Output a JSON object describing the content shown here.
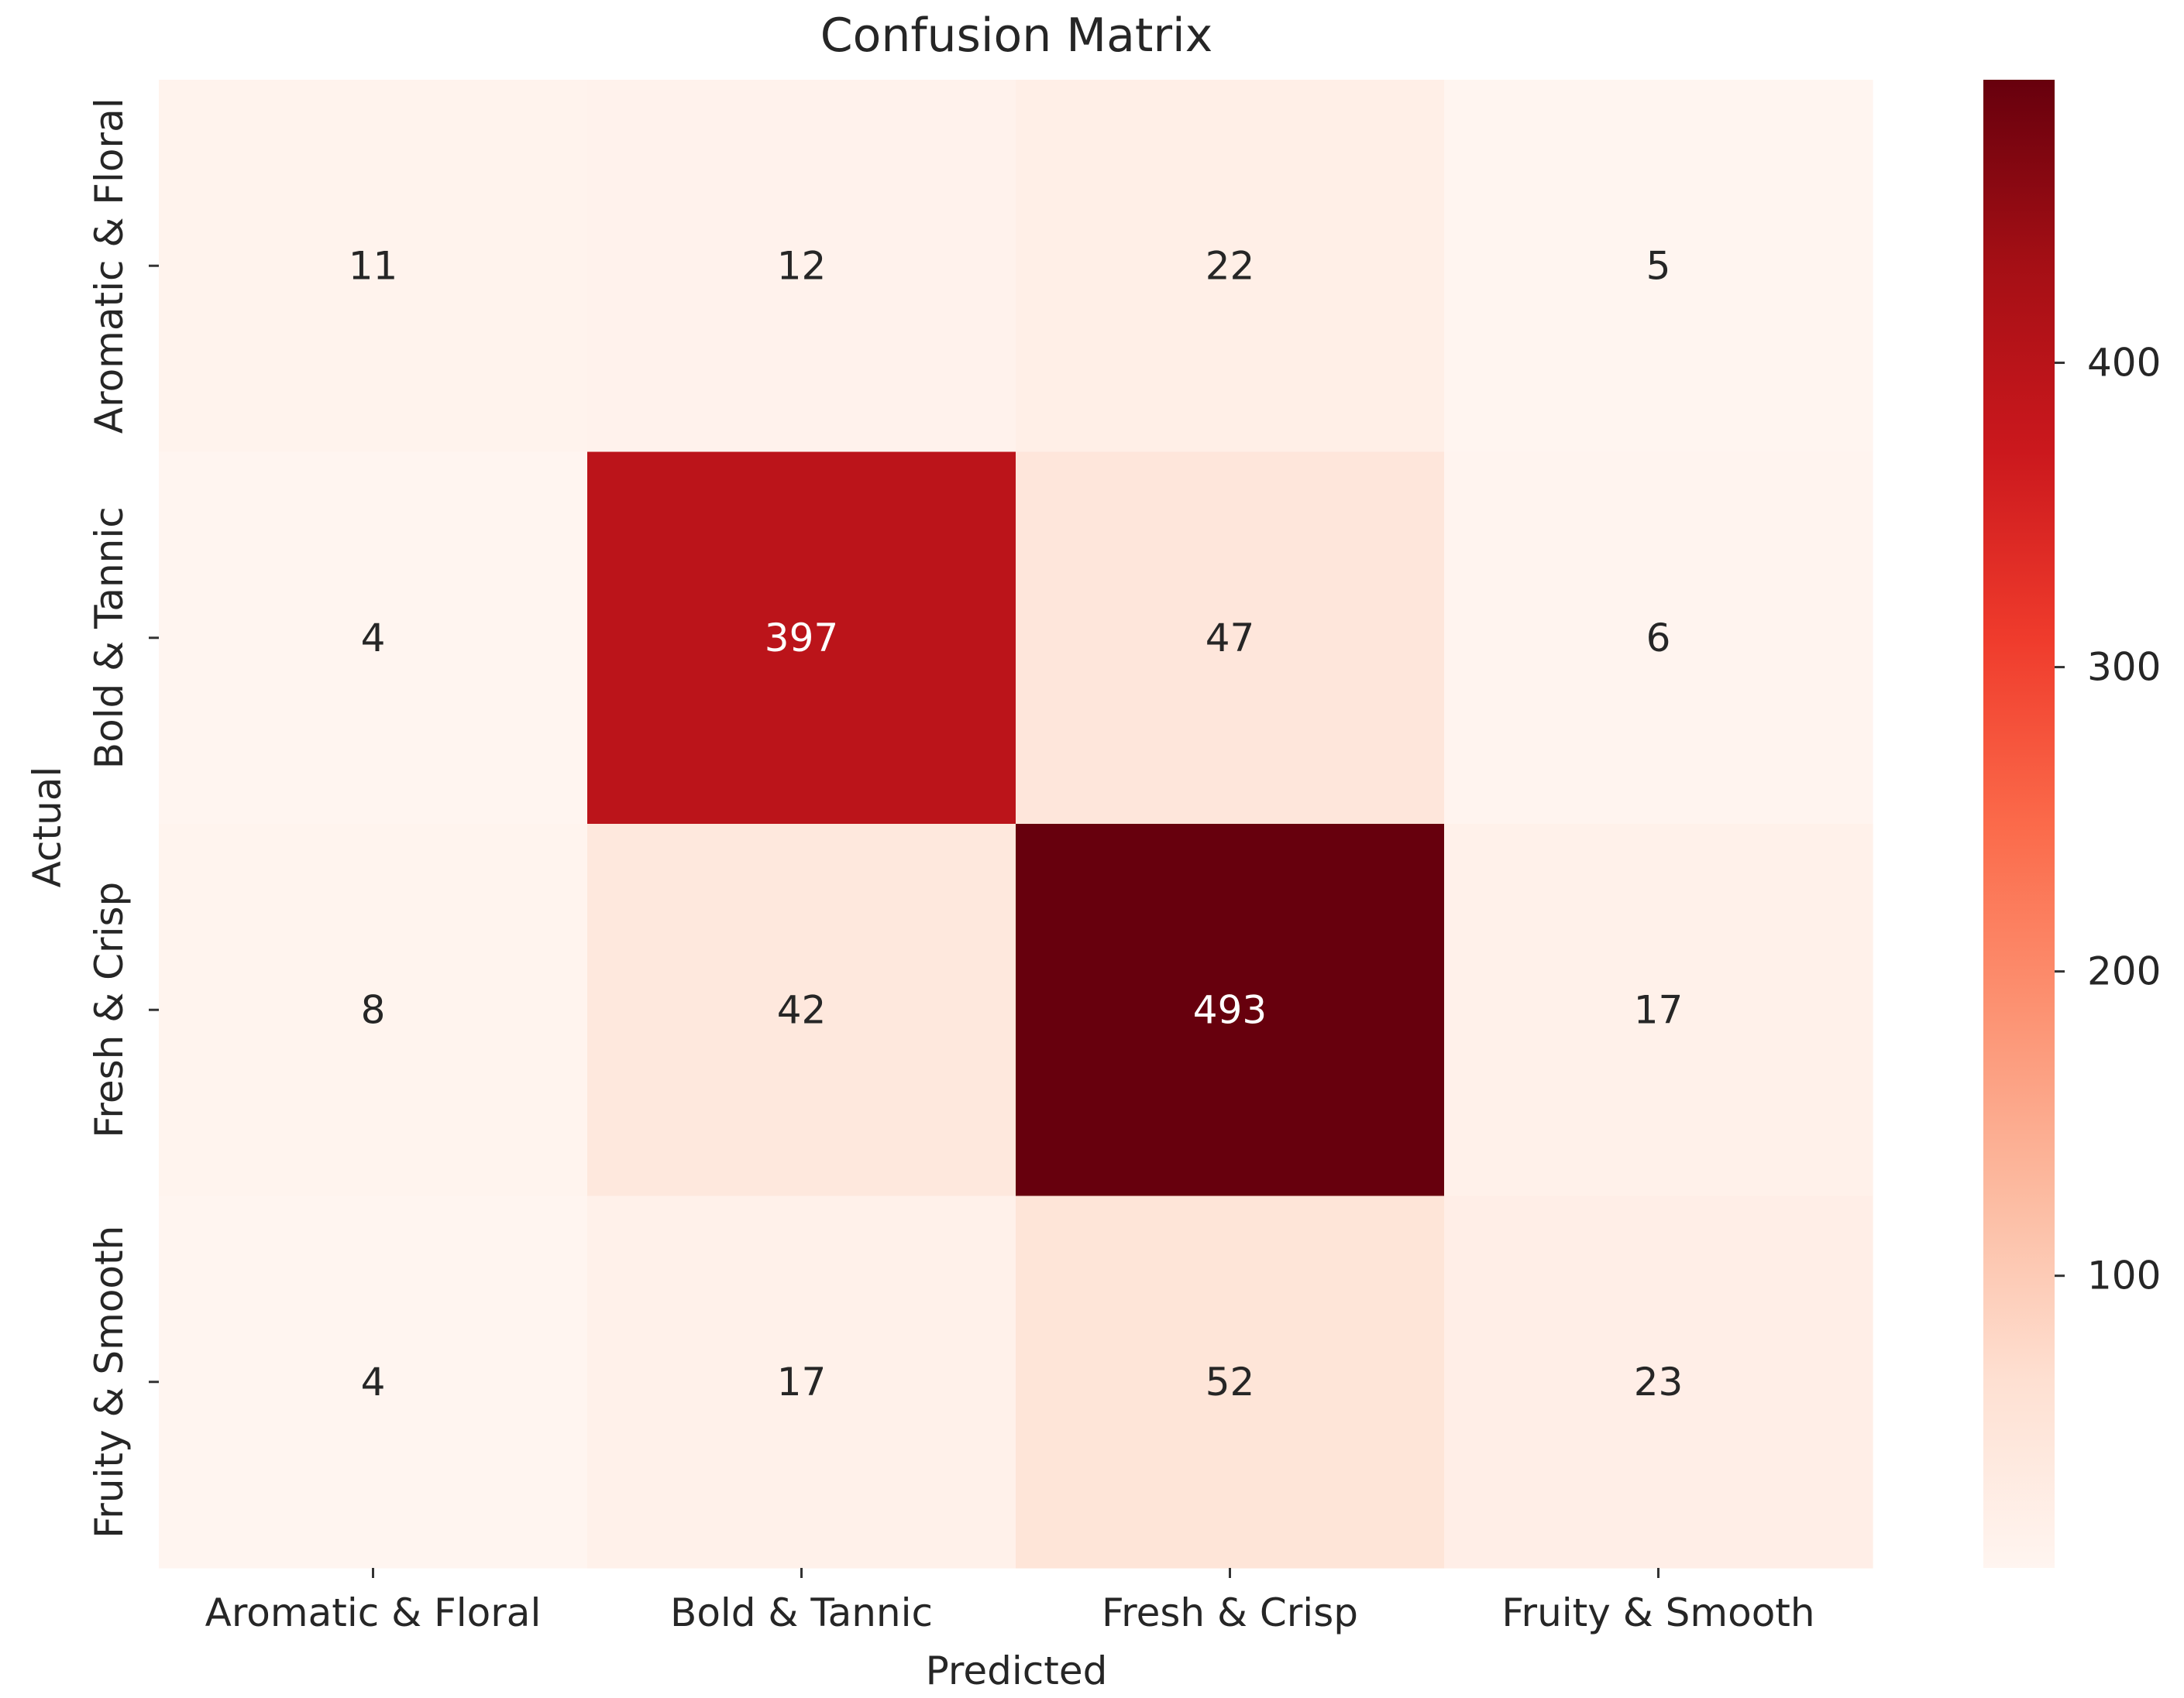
{
  "chart_data": {
    "type": "heatmap",
    "title": "Confusion Matrix",
    "xlabel": "Predicted",
    "ylabel": "Actual",
    "x_categories": [
      "Aromatic & Floral",
      "Bold & Tannic",
      "Fresh & Crisp",
      "Fruity & Smooth"
    ],
    "y_categories": [
      "Aromatic & Floral",
      "Bold & Tannic",
      "Fresh & Crisp",
      "Fruity & Smooth"
    ],
    "values": [
      [
        11,
        12,
        22,
        5
      ],
      [
        4,
        397,
        47,
        6
      ],
      [
        8,
        42,
        493,
        17
      ],
      [
        4,
        17,
        52,
        23
      ]
    ],
    "colormap": "Reds",
    "color_range": [
      4,
      493
    ],
    "colorbar_ticks": [
      100,
      200,
      300,
      400
    ]
  }
}
